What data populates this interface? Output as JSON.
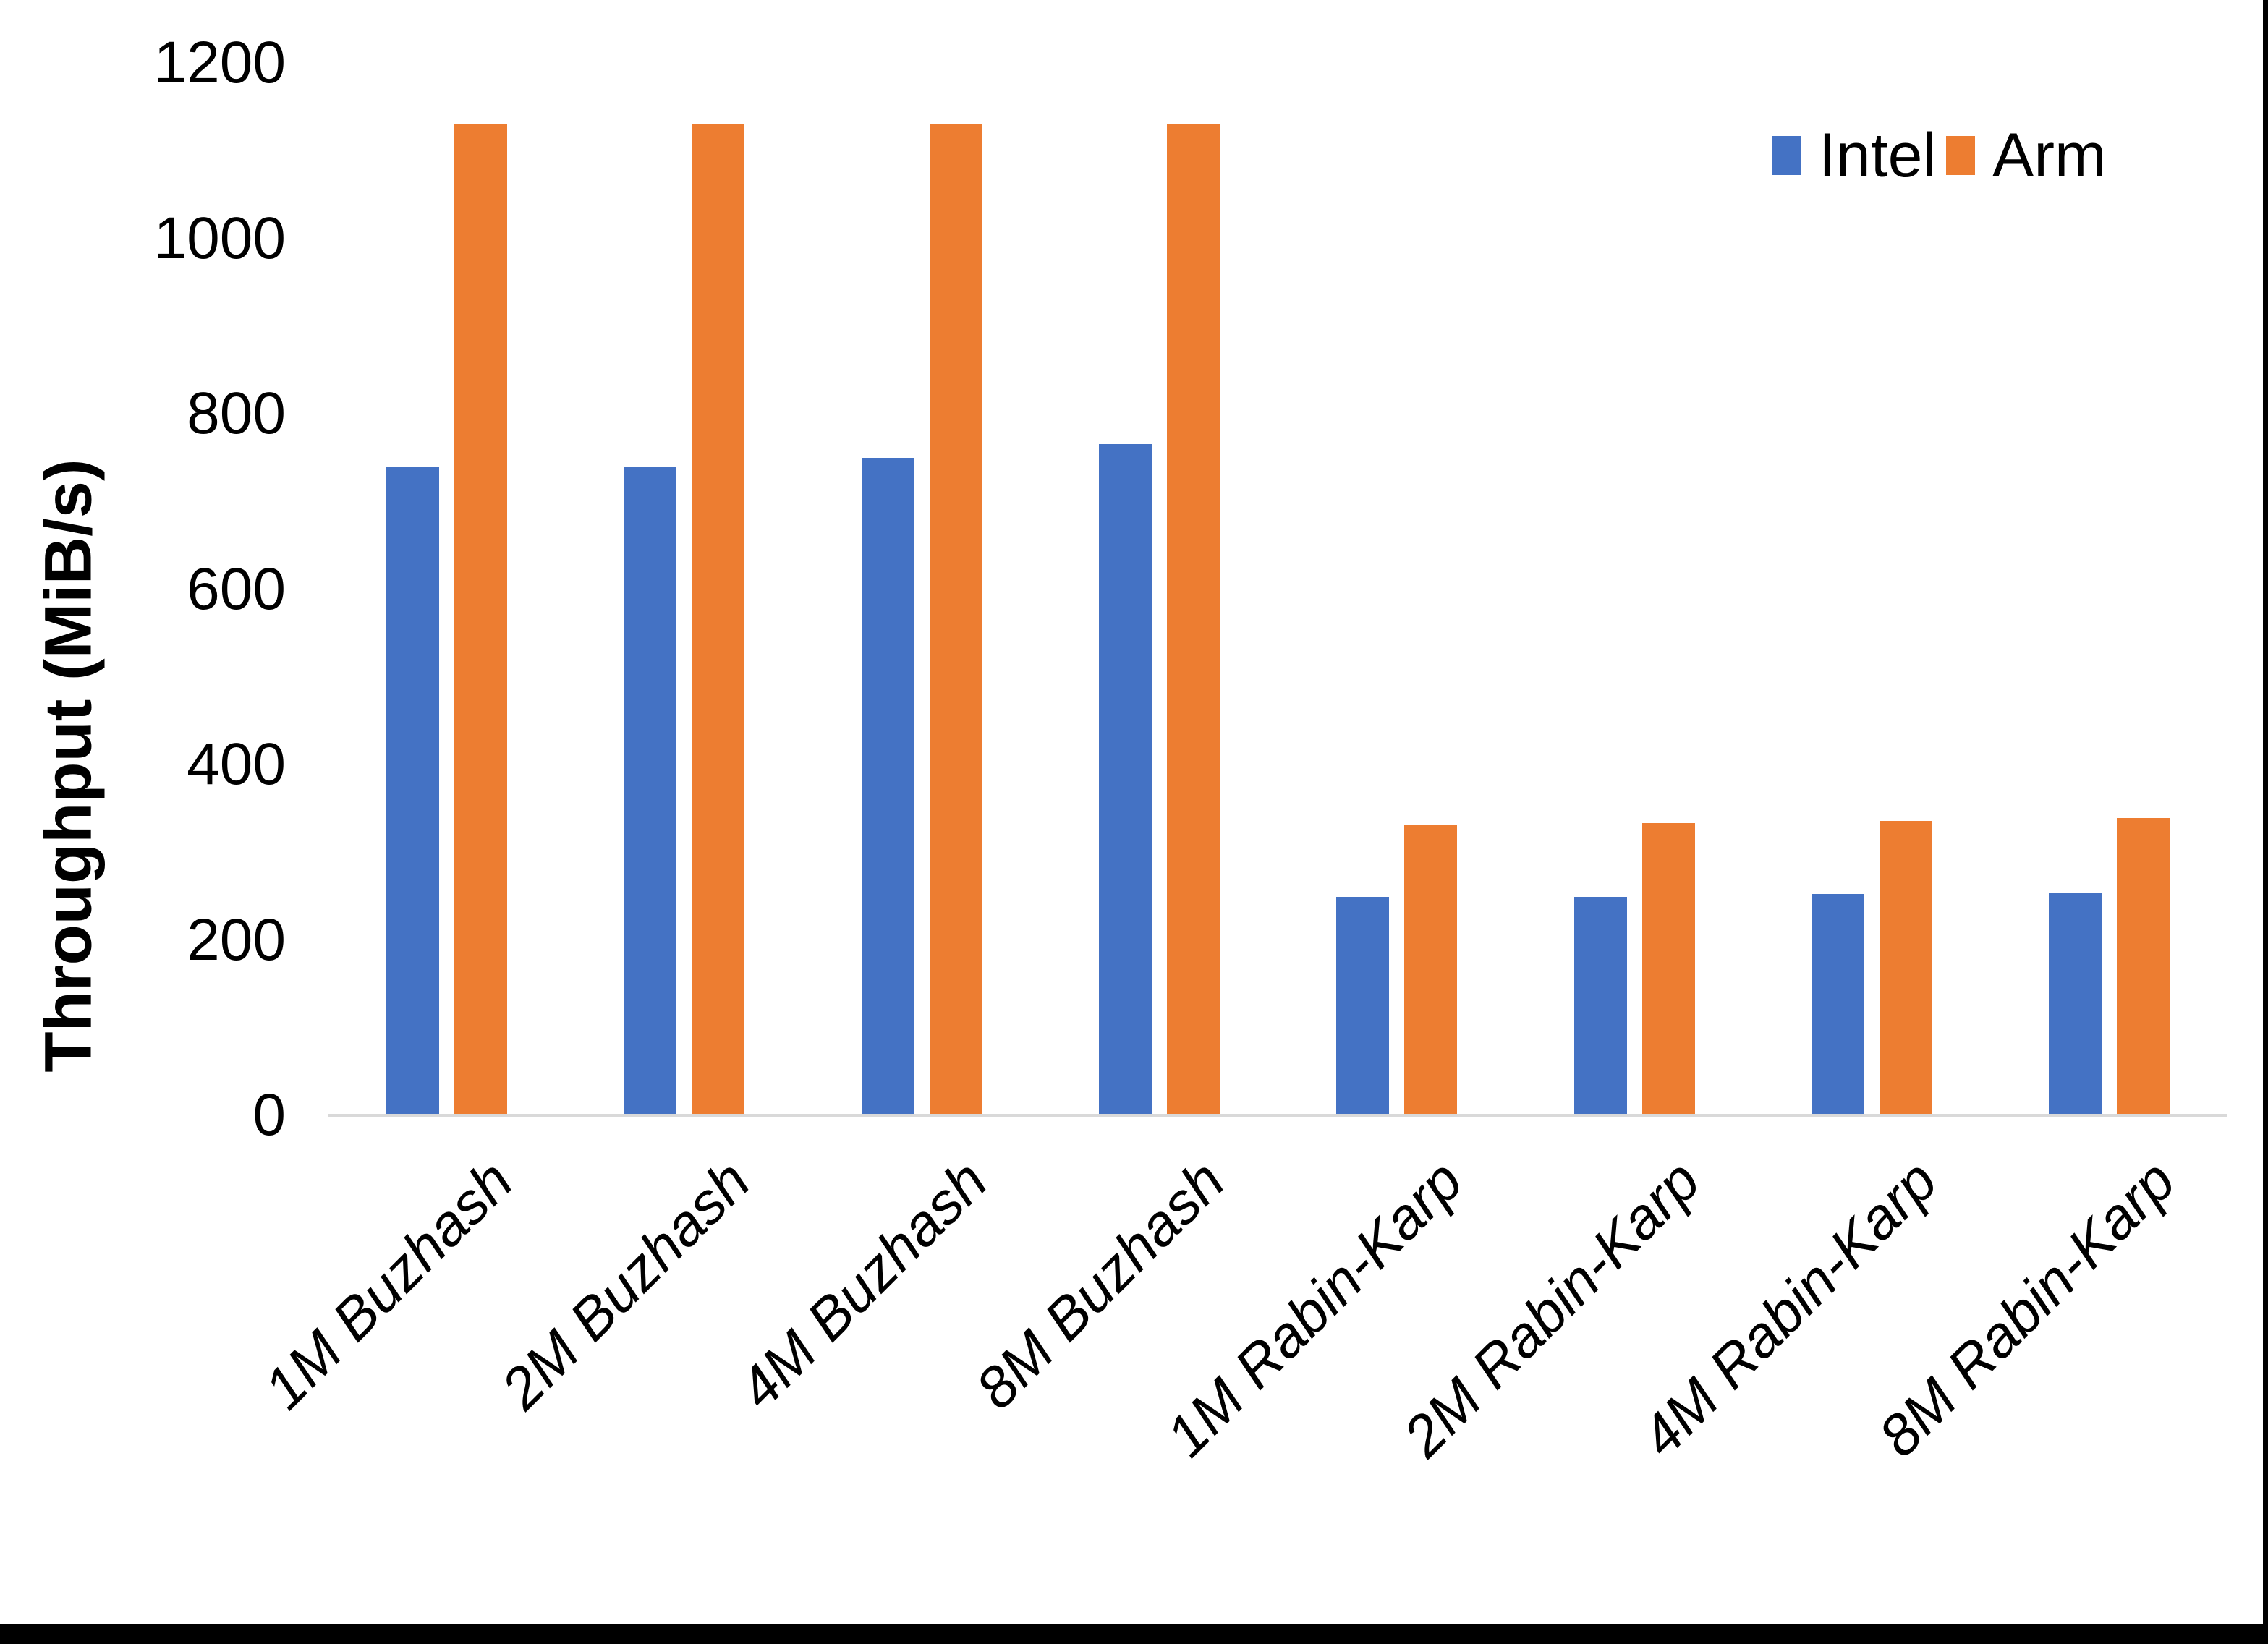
{
  "chart_data": {
    "type": "bar",
    "categories": [
      "1M Buzhash",
      "2M Buzhash",
      "4M Buzhash",
      "8M Buzhash",
      "1M Rabin-Karp",
      "2M Rabin-Karp",
      "4M Rabin-Karp",
      "8M Rabin-Karp"
    ],
    "series": [
      {
        "name": "Intel",
        "color": "#4472C4",
        "values": [
          740,
          740,
          750,
          765,
          249,
          249,
          252,
          253
        ]
      },
      {
        "name": "Arm",
        "color": "#ED7D31",
        "values": [
          1130,
          1130,
          1130,
          1130,
          331,
          333,
          336,
          339
        ]
      }
    ],
    "title": "",
    "xlabel": "",
    "ylabel": "Throughput (MiB/s)",
    "ylim": [
      0,
      1200
    ],
    "yticks": [
      0,
      200,
      400,
      600,
      800,
      1000,
      1200
    ],
    "grid": false,
    "legend_position": "top-right"
  },
  "axes": {
    "y_title": "Throughput (MiB/s)"
  },
  "legend": {
    "items": [
      {
        "label": "Intel",
        "color": "#4472C4"
      },
      {
        "label": "Arm",
        "color": "#ED7D31"
      }
    ]
  },
  "colors": {
    "intel": "#4472C4",
    "arm": "#ED7D31",
    "axis_line": "#D9D9D9",
    "text": "#000000",
    "page_edge": "#000000"
  }
}
